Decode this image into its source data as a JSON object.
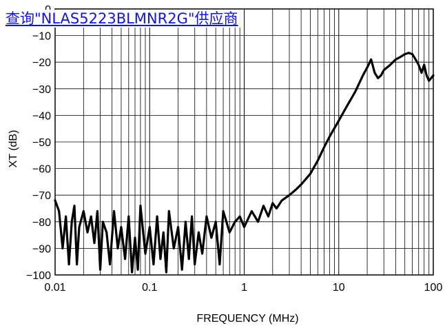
{
  "link": {
    "text": "查询\"NLAS5223BLMNR2G\"供应商"
  },
  "chart_data": {
    "type": "line",
    "title": "",
    "xlabel": "FREQUENCY (MHz)",
    "ylabel": "XT (dB)",
    "xscale": "log",
    "xlim": [
      0.01,
      100
    ],
    "ylim": [
      -100,
      0
    ],
    "grid": true,
    "x_ticks": [
      {
        "value": 0.01,
        "label": "0.01"
      },
      {
        "value": 0.1,
        "label": "0.1"
      },
      {
        "value": 1,
        "label": "1"
      },
      {
        "value": 10,
        "label": "10"
      },
      {
        "value": 100,
        "label": "100"
      }
    ],
    "y_ticks": [
      {
        "value": 0,
        "label": "0"
      },
      {
        "value": -10,
        "label": "−10"
      },
      {
        "value": -20,
        "label": "−20"
      },
      {
        "value": -30,
        "label": "−30"
      },
      {
        "value": -40,
        "label": "−40"
      },
      {
        "value": -50,
        "label": "−50"
      },
      {
        "value": -60,
        "label": "−60"
      },
      {
        "value": -70,
        "label": "−70"
      },
      {
        "value": -80,
        "label": "−80"
      },
      {
        "value": -90,
        "label": "−90"
      },
      {
        "value": -100,
        "label": "−100"
      }
    ],
    "series": [
      {
        "color": "#000000",
        "x": [
          0.01,
          0.011,
          0.012,
          0.013,
          0.014,
          0.015,
          0.016,
          0.017,
          0.018,
          0.02,
          0.022,
          0.024,
          0.026,
          0.028,
          0.03,
          0.032,
          0.035,
          0.038,
          0.042,
          0.046,
          0.05,
          0.055,
          0.06,
          0.065,
          0.07,
          0.075,
          0.08,
          0.09,
          0.1,
          0.11,
          0.12,
          0.13,
          0.14,
          0.15,
          0.16,
          0.18,
          0.2,
          0.22,
          0.24,
          0.26,
          0.28,
          0.3,
          0.33,
          0.36,
          0.4,
          0.45,
          0.5,
          0.55,
          0.6,
          0.7,
          0.8,
          0.9,
          1.0,
          1.2,
          1.4,
          1.6,
          1.8,
          2.0,
          2.2,
          2.5,
          3.0,
          3.5,
          4.0,
          5.0,
          6.0,
          7.0,
          8.0,
          10,
          12,
          15,
          18,
          20,
          22,
          24,
          26,
          28,
          30,
          35,
          40,
          45,
          50,
          55,
          60,
          65,
          70,
          75,
          80,
          85,
          90,
          95,
          100
        ],
        "y": [
          -72,
          -76,
          -90,
          -78,
          -96,
          -80,
          -74,
          -96,
          -82,
          -76,
          -84,
          -78,
          -88,
          -76,
          -98,
          -80,
          -84,
          -96,
          -76,
          -90,
          -82,
          -94,
          -78,
          -99,
          -86,
          -98,
          -74,
          -92,
          -82,
          -96,
          -78,
          -94,
          -84,
          -99,
          -76,
          -90,
          -82,
          -98,
          -80,
          -94,
          -78,
          -96,
          -84,
          -92,
          -78,
          -86,
          -80,
          -96,
          -76,
          -84,
          -80,
          -78,
          -82,
          -76,
          -80,
          -74,
          -78,
          -73,
          -75,
          -72,
          -70,
          -68,
          -66,
          -62,
          -57,
          -52,
          -48,
          -42,
          -37,
          -31,
          -25,
          -22,
          -19,
          -24,
          -26,
          -25,
          -23,
          -21,
          -19,
          -18,
          -17,
          -16.5,
          -17,
          -19,
          -21,
          -24,
          -21,
          -25,
          -27,
          -26,
          -25
        ]
      }
    ]
  }
}
